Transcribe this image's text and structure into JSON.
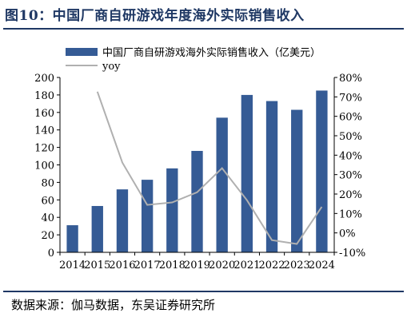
{
  "figure": {
    "title": "图10：中国厂商自研游戏年度海外实际销售收入",
    "source": "数据来源：伽马数据，东吴证券研究所"
  },
  "colors": {
    "bar": "#355b95",
    "line": "#b0b0b0",
    "title": "#1f3864",
    "axis": "#000000"
  },
  "chart_data": {
    "type": "bar",
    "categories": [
      "2014",
      "2015",
      "2016",
      "2017",
      "2018",
      "2019",
      "2020",
      "2021",
      "2022",
      "2023",
      "2024"
    ],
    "series": [
      {
        "name": "中国厂商自研游戏海外实际销售收入（亿美元）",
        "type": "bar",
        "axis": "left",
        "values": [
          31,
          53,
          72,
          83,
          96,
          116,
          154,
          180,
          173,
          163,
          185
        ]
      },
      {
        "name": "yoy",
        "type": "line",
        "axis": "right",
        "values": [
          null,
          72.7,
          36.2,
          14.4,
          15.7,
          20.9,
          33.3,
          16.8,
          -3.7,
          -5.7,
          13.4
        ]
      }
    ],
    "left_axis": {
      "min": 0,
      "max": 200,
      "ticks": [
        "0",
        "20",
        "40",
        "60",
        "80",
        "100",
        "120",
        "140",
        "160",
        "180",
        "200"
      ]
    },
    "right_axis": {
      "min": -10,
      "max": 80,
      "ticks": [
        "-10%",
        "0%",
        "10%",
        "20%",
        "30%",
        "40%",
        "50%",
        "60%",
        "70%",
        "80%"
      ]
    },
    "legend_position": "top-left",
    "grid": false
  }
}
